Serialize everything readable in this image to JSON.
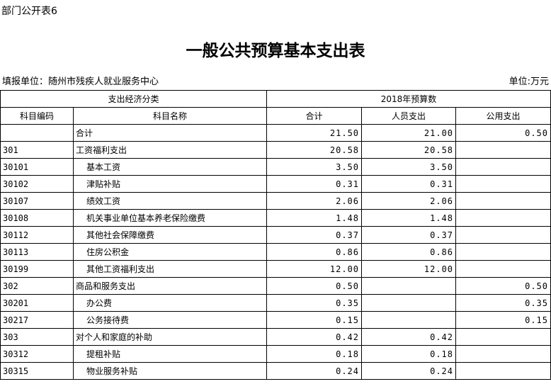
{
  "tag": "部门公开表6",
  "title": "一般公共预算基本支出表",
  "unit_org": "填报单位：随州市残疾人就业服务中心",
  "unit": "单位:万元",
  "header": {
    "group1": "支出经济分类",
    "group2": "2018年预算数",
    "code": "科目编码",
    "name": "科目名称",
    "total": "合计",
    "personnel": "人员支出",
    "public": "公用支出"
  },
  "rows": [
    {
      "code": "",
      "name": "合计",
      "total": "21.50",
      "personnel": "21.00",
      "public": "0.50",
      "indent": false
    },
    {
      "code": "301",
      "name": "工资福利支出",
      "total": "20.58",
      "personnel": "20.58",
      "public": "",
      "indent": false
    },
    {
      "code": "30101",
      "name": "基本工资",
      "total": "3.50",
      "personnel": "3.50",
      "public": "",
      "indent": true
    },
    {
      "code": "30102",
      "name": "津贴补贴",
      "total": "0.31",
      "personnel": "0.31",
      "public": "",
      "indent": true
    },
    {
      "code": "30107",
      "name": "绩效工资",
      "total": "2.06",
      "personnel": "2.06",
      "public": "",
      "indent": true
    },
    {
      "code": "30108",
      "name": "机关事业单位基本养老保险缴费",
      "total": "1.48",
      "personnel": "1.48",
      "public": "",
      "indent": true
    },
    {
      "code": "30112",
      "name": "其他社会保障缴费",
      "total": "0.37",
      "personnel": "0.37",
      "public": "",
      "indent": true
    },
    {
      "code": "30113",
      "name": "住房公积金",
      "total": "0.86",
      "personnel": "0.86",
      "public": "",
      "indent": true
    },
    {
      "code": "30199",
      "name": "其他工资福利支出",
      "total": "12.00",
      "personnel": "12.00",
      "public": "",
      "indent": true
    },
    {
      "code": "302",
      "name": "商品和服务支出",
      "total": "0.50",
      "personnel": "",
      "public": "0.50",
      "indent": false
    },
    {
      "code": "30201",
      "name": "办公费",
      "total": "0.35",
      "personnel": "",
      "public": "0.35",
      "indent": true
    },
    {
      "code": "30217",
      "name": "公务接待费",
      "total": "0.15",
      "personnel": "",
      "public": "0.15",
      "indent": true
    },
    {
      "code": "303",
      "name": "对个人和家庭的补助",
      "total": "0.42",
      "personnel": "0.42",
      "public": "",
      "indent": false
    },
    {
      "code": "30312",
      "name": "提租补贴",
      "total": "0.18",
      "personnel": "0.18",
      "public": "",
      "indent": true
    },
    {
      "code": "30315",
      "name": "物业服务补贴",
      "total": "0.24",
      "personnel": "0.24",
      "public": "",
      "indent": true
    }
  ]
}
